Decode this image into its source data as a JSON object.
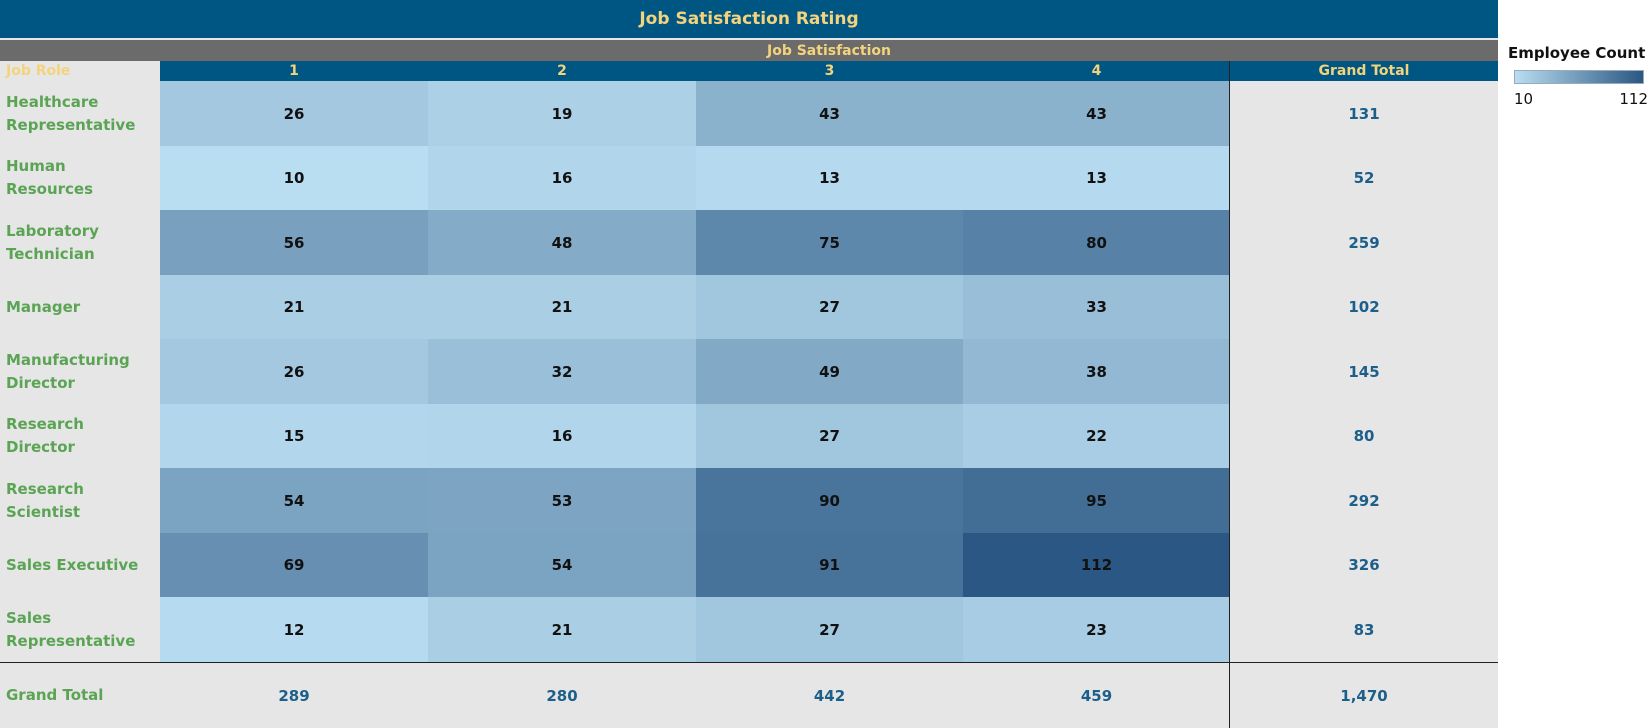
{
  "title": "Job Satisfaction Rating",
  "column_group_label": "Job Satisfaction",
  "row_header_label": "Job Role",
  "grand_total_label": "Grand Total",
  "legend": {
    "title": "Employee Count",
    "min": "10",
    "max": "112"
  },
  "colors": {
    "low": "#b9ddf1",
    "high": "#2a5783",
    "header_bg": "#005683",
    "header_text": "#f3d37c",
    "row_label": "#5aa454",
    "total_text": "#1c5f8a"
  },
  "chart_data": {
    "type": "heatmap",
    "title": "Job Satisfaction Rating",
    "xlabel": "Job Satisfaction",
    "ylabel": "Job Role",
    "x_categories": [
      "1",
      "2",
      "3",
      "4"
    ],
    "y_categories": [
      "Healthcare Representative",
      "Human Resources",
      "Laboratory Technician",
      "Manager",
      "Manufacturing Director",
      "Research Director",
      "Research Scientist",
      "Sales Executive",
      "Sales Representative"
    ],
    "values": [
      [
        26,
        19,
        43,
        43
      ],
      [
        10,
        16,
        13,
        13
      ],
      [
        56,
        48,
        75,
        80
      ],
      [
        21,
        21,
        27,
        33
      ],
      [
        26,
        32,
        49,
        38
      ],
      [
        15,
        16,
        27,
        22
      ],
      [
        54,
        53,
        90,
        95
      ],
      [
        69,
        54,
        91,
        112
      ],
      [
        12,
        21,
        27,
        23
      ]
    ],
    "row_totals": [
      "131",
      "52",
      "259",
      "102",
      "145",
      "80",
      "292",
      "326",
      "83"
    ],
    "column_totals": [
      "289",
      "280",
      "442",
      "459"
    ],
    "grand_total": "1,470",
    "color_range": [
      10,
      112
    ]
  }
}
